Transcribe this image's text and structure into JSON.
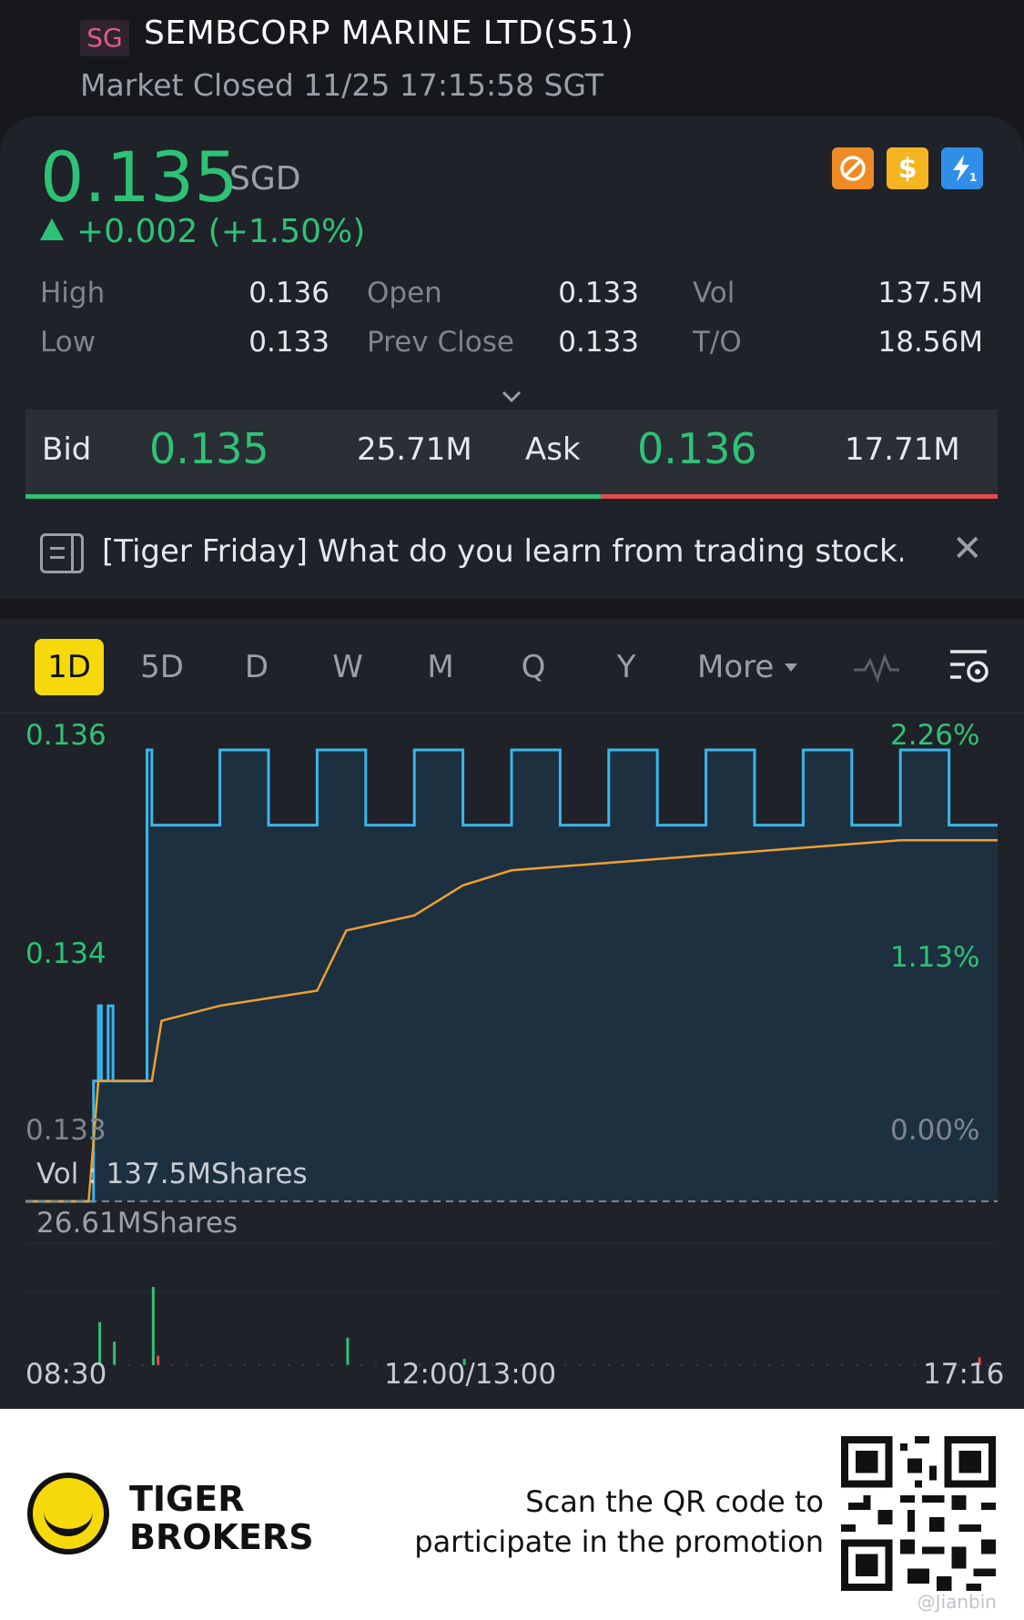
{
  "header": {
    "market_badge": "SG",
    "title": "SEMBCORP MARINE LTD(S51)",
    "status": "Market Closed 11/25 17:15:58 SGT"
  },
  "quote": {
    "price": "0.135",
    "currency": "SGD",
    "change": "+0.002 (+1.50%)",
    "price_color": "#2ec276",
    "icons": [
      "no-short-icon",
      "dollar-icon",
      "flash-level1-icon"
    ]
  },
  "stats": {
    "high_label": "High",
    "high": "0.136",
    "low_label": "Low",
    "low": "0.133",
    "open_label": "Open",
    "open": "0.133",
    "prev_close_label": "Prev Close",
    "prev_close": "0.133",
    "vol_label": "Vol",
    "vol": "137.5M",
    "to_label": "T/O",
    "to": "18.56M"
  },
  "bidask": {
    "bid_label": "Bid",
    "bid_price": "0.135",
    "bid_size": "25.71M",
    "ask_label": "Ask",
    "ask_price": "0.136",
    "ask_size": "17.71M",
    "bid_ratio": 0.592
  },
  "news": {
    "text": "[Tiger Friday] What do you learn from trading stock..."
  },
  "tabs": {
    "items": [
      "1D",
      "5D",
      "D",
      "W",
      "M",
      "Q",
      "Y",
      "More"
    ],
    "active": "1D"
  },
  "chart_labels": {
    "y_top": "0.136",
    "y_mid": "0.134",
    "y_bottom": "0.133",
    "pct_top": "2.26%",
    "pct_mid": "1.13%",
    "pct_bottom": "0.00%",
    "vol_summary": "Vol :  137.5MShares",
    "vol_max": "26.61MShares",
    "x_start": "08:30",
    "x_mid": "12:00/13:00",
    "x_end": "17:16"
  },
  "chart_data": {
    "type": "line",
    "x_range": [
      "08:30",
      "17:16"
    ],
    "ylim": [
      0.133,
      0.136
    ],
    "series": [
      {
        "color": "#3ab6ec",
        "style": "step",
        "x": [
          0.0,
          0.065,
          0.07,
          0.075,
          0.078,
          0.085,
          0.09,
          0.1,
          0.12,
          0.125,
          0.13,
          0.18,
          0.2,
          0.25,
          0.3,
          0.35,
          0.4,
          0.45,
          0.5,
          0.55,
          0.6,
          0.65,
          0.7,
          0.75,
          0.8,
          0.85,
          0.9,
          0.95,
          1.0
        ],
        "values": [
          0.133,
          0.133,
          0.1338,
          0.1343,
          0.1338,
          0.1343,
          0.1338,
          0.1338,
          0.1338,
          0.136,
          0.1355,
          0.1355,
          0.136,
          0.1355,
          0.136,
          0.1355,
          0.136,
          0.1355,
          0.136,
          0.1355,
          0.136,
          0.1355,
          0.136,
          0.1355,
          0.136,
          0.1355,
          0.136,
          0.1355,
          0.1355
        ]
      },
      {
        "color": "#f0a030",
        "x": [
          0.0,
          0.065,
          0.075,
          0.13,
          0.14,
          0.2,
          0.3,
          0.33,
          0.4,
          0.45,
          0.5,
          0.6,
          0.7,
          0.8,
          0.9,
          1.0
        ],
        "values": [
          0.133,
          0.133,
          0.1338,
          0.1338,
          0.1342,
          0.1343,
          0.1344,
          0.1348,
          0.1349,
          0.1351,
          0.1352,
          0.13525,
          0.1353,
          0.13535,
          0.1354,
          0.1354
        ]
      }
    ],
    "volume": {
      "max": "26.61MShares",
      "bars": [
        {
          "x": 0.075,
          "v": 0.55,
          "color": "#2ec276"
        },
        {
          "x": 0.09,
          "v": 0.3,
          "color": "#2ec276"
        },
        {
          "x": 0.13,
          "v": 1.0,
          "color": "#2ec276"
        },
        {
          "x": 0.135,
          "v": 0.12,
          "color": "#e6494c"
        },
        {
          "x": 0.33,
          "v": 0.35,
          "color": "#2ec276"
        },
        {
          "x": 0.45,
          "v": 0.08,
          "color": "#2ec276"
        },
        {
          "x": 0.98,
          "v": 0.1,
          "color": "#e6494c"
        }
      ]
    }
  },
  "footer": {
    "brand_line1": "TIGER",
    "brand_line2": "BROKERS",
    "promo_line1": "Scan the QR code to",
    "promo_line2": "participate in the promotion",
    "watermark": "@Jianbin"
  }
}
